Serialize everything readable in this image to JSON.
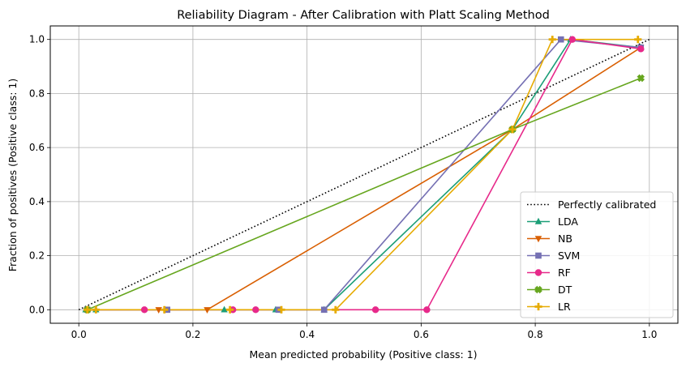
{
  "chart_data": {
    "type": "line",
    "title": "Reliability Diagram - After Calibration with Platt Scaling Method",
    "xlabel": "Mean predicted probability (Positive class: 1)",
    "ylabel": "Fraction of positives (Positive class: 1)",
    "xlim": [
      -0.05,
      1.05
    ],
    "ylim": [
      -0.05,
      1.05
    ],
    "xticks": [
      "0.0",
      "0.2",
      "0.4",
      "0.6",
      "0.8",
      "1.0"
    ],
    "yticks": [
      "0.0",
      "0.2",
      "0.4",
      "0.6",
      "0.8",
      "1.0"
    ],
    "grid": true,
    "legend_position": "bottom-right",
    "reference": {
      "name": "Perfectly calibrated",
      "x": [
        0,
        1
      ],
      "y": [
        0,
        1
      ],
      "color": "#000000"
    },
    "series": [
      {
        "name": "LDA",
        "color": "#1b9e77",
        "marker": "triangle-up",
        "x": [
          0.012,
          0.03,
          0.255,
          0.345,
          0.43,
          0.76,
          0.862,
          0.985
        ],
        "y": [
          0,
          0,
          0,
          0,
          0,
          0.667,
          1.0,
          0.97
        ]
      },
      {
        "name": "NB",
        "color": "#d95f02",
        "marker": "triangle-down",
        "x": [
          0.015,
          0.14,
          0.225,
          0.76,
          0.985
        ],
        "y": [
          0,
          0,
          0,
          0.667,
          0.97
        ]
      },
      {
        "name": "SVM",
        "color": "#7570b3",
        "marker": "square",
        "x": [
          0.015,
          0.155,
          0.35,
          0.43,
          0.845,
          0.985
        ],
        "y": [
          0,
          0,
          0,
          0,
          1.0,
          0.97
        ]
      },
      {
        "name": "RF",
        "color": "#e7298a",
        "marker": "circle",
        "x": [
          0.015,
          0.115,
          0.27,
          0.31,
          0.52,
          0.61,
          0.865,
          0.985
        ],
        "y": [
          0,
          0,
          0,
          0,
          0,
          0,
          1.0,
          0.965
        ]
      },
      {
        "name": "DT",
        "color": "#66a61e",
        "marker": "x",
        "x": [
          0.015,
          0.76,
          0.985
        ],
        "y": [
          0,
          0.667,
          0.857
        ]
      },
      {
        "name": "LR",
        "color": "#e6ab02",
        "marker": "plus",
        "x": [
          0.015,
          0.03,
          0.15,
          0.265,
          0.355,
          0.45,
          0.76,
          0.83,
          0.98
        ],
        "y": [
          0,
          0,
          0,
          0,
          0,
          0,
          0.667,
          1.0,
          1.0
        ]
      }
    ]
  }
}
